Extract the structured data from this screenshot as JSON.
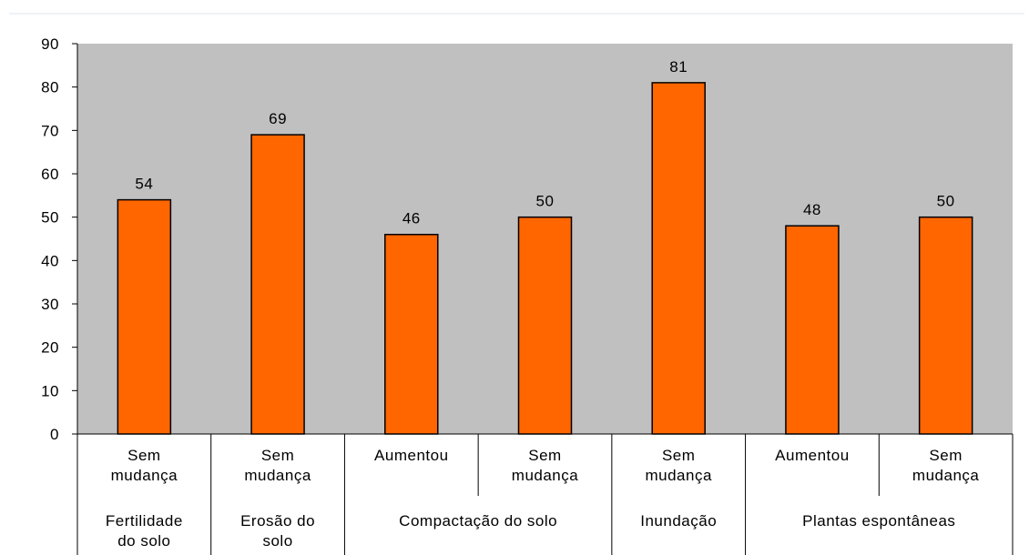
{
  "chart_data": {
    "type": "bar",
    "groups": [
      {
        "name": "Fertilidade\ndo solo",
        "categories": [
          "Sem\nmudança"
        ]
      },
      {
        "name": "Erosão do\nsolo",
        "categories": [
          "Sem\nmudança"
        ]
      },
      {
        "name": "Compactação do solo",
        "categories": [
          "Aumentou",
          "Sem\nmudança"
        ]
      },
      {
        "name": "Inundação",
        "categories": [
          "Sem\nmudança"
        ]
      },
      {
        "name": "Plantas espontâneas",
        "categories": [
          "Aumentou",
          "Sem\nmudança"
        ]
      }
    ],
    "values": [
      54,
      69,
      46,
      50,
      81,
      48,
      50
    ],
    "color": "#ff6600",
    "background": "#c0c0c0",
    "ylim": [
      0,
      90
    ],
    "yticks": [
      0,
      10,
      20,
      30,
      40,
      50,
      60,
      70,
      80,
      90
    ],
    "grid": false
  }
}
